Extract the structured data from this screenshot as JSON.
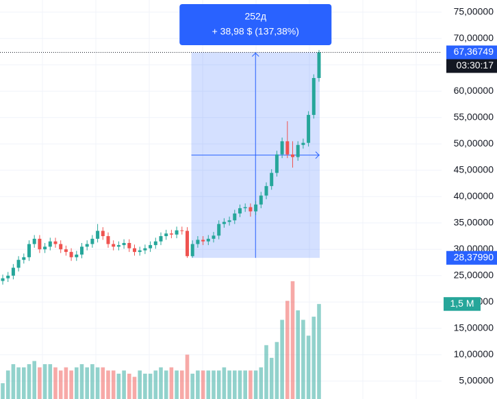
{
  "chart_data": {
    "type": "candlestick",
    "open": [
      24,
      24.5,
      25,
      26.5,
      28,
      28.5,
      31,
      32,
      30,
      30.5,
      31.5,
      31,
      30,
      29.5,
      28.5,
      29,
      30.5,
      31,
      32,
      33.5,
      32.5,
      31,
      30.5,
      30.8,
      31.2,
      30.2,
      29.5,
      29.8,
      30.2,
      30.8,
      31.5,
      32.5,
      33,
      32.8,
      33.6,
      33.5,
      28.7,
      31,
      31.8,
      31.5,
      32,
      32.6,
      34.8,
      35.2,
      35.5,
      36.8,
      37.8,
      38,
      37.2,
      38.5,
      40.2,
      42,
      44.5,
      48,
      50.5,
      48,
      47.5,
      49.8,
      50.2,
      55.5,
      62.5
    ],
    "high": [
      25.2,
      25.7,
      27.2,
      28.7,
      29.2,
      31.7,
      32.7,
      32.7,
      31.2,
      32.2,
      32.2,
      31.7,
      30.7,
      30.2,
      29.7,
      31.2,
      31.7,
      32.7,
      34.8,
      34.2,
      33.2,
      31.7,
      31.5,
      31.9,
      31.9,
      30.9,
      30.5,
      30.9,
      31.5,
      32.2,
      33.2,
      33.7,
      33.7,
      34.3,
      34.3,
      34.2,
      31.7,
      32.5,
      32.5,
      32.7,
      33.3,
      35.5,
      35.9,
      36.2,
      37.5,
      38.5,
      38.7,
      38.7,
      39.2,
      40.9,
      42.7,
      45.2,
      48.7,
      51.2,
      54.3,
      50.5,
      50.5,
      51,
      56.2,
      63.2,
      67.8
    ],
    "low": [
      23.3,
      23.8,
      24.3,
      25.8,
      27.3,
      27.8,
      30.3,
      29.3,
      29.3,
      29.8,
      30.3,
      29.3,
      28.8,
      27.8,
      27.8,
      28.3,
      29.8,
      30.3,
      31.3,
      31.8,
      30.3,
      29.8,
      29.8,
      30.1,
      29.5,
      28.8,
      28.8,
      29.1,
      29.5,
      30.1,
      30.8,
      31.8,
      32.1,
      32.1,
      32.8,
      28.3799,
      28.4,
      30.3,
      30.8,
      30.8,
      31.3,
      31.9,
      34.1,
      34.5,
      34.8,
      36.1,
      37.1,
      36.2,
      36.5,
      37.8,
      39.5,
      41.3,
      43.8,
      47.3,
      47.3,
      45.5,
      46.8,
      49.1,
      49.5,
      54.8,
      61.8
    ],
    "close": [
      24.5,
      25,
      26.5,
      28,
      28.5,
      31,
      32,
      30,
      30.5,
      31.5,
      31,
      30,
      29.5,
      28.5,
      29,
      30.5,
      31,
      32,
      33.5,
      32.5,
      31,
      30.5,
      30.8,
      31.2,
      30.2,
      29.5,
      29.8,
      30.2,
      30.8,
      31.5,
      32.5,
      33,
      32.8,
      33.6,
      33.5,
      28.7,
      31,
      31.8,
      31.5,
      32,
      32.6,
      34.8,
      35.2,
      35.5,
      36.8,
      37.8,
      38,
      37.2,
      38.5,
      40.2,
      42,
      44.5,
      48,
      50.5,
      48,
      47.5,
      49.8,
      50.2,
      55.5,
      62.5,
      67.36749
    ],
    "volume": [
      0.25,
      0.45,
      0.55,
      0.5,
      0.5,
      0.55,
      0.6,
      0.5,
      0.55,
      0.55,
      0.5,
      0.45,
      0.5,
      0.45,
      0.5,
      0.55,
      0.5,
      0.55,
      0.5,
      0.5,
      0.45,
      0.45,
      0.4,
      0.45,
      0.4,
      0.35,
      0.45,
      0.4,
      0.4,
      0.45,
      0.5,
      0.45,
      0.5,
      0.45,
      0.45,
      0.7,
      0.4,
      0.45,
      0.45,
      0.45,
      0.45,
      0.45,
      0.5,
      0.45,
      0.45,
      0.45,
      0.45,
      0.45,
      0.45,
      0.5,
      0.85,
      0.65,
      0.9,
      1.25,
      1.55,
      1.86,
      1.4,
      1.25,
      1.0,
      1.3,
      1.5
    ],
    "volume_ylim": [
      0,
      6.3
    ],
    "volume_last_label": "1,5 M",
    "up_color": "#26a69a",
    "down_color": "#ef5350",
    "ylim": [
      1.6,
      77.3
    ],
    "yticks": [
      {
        "value": 5,
        "label": "5,00000"
      },
      {
        "value": 10,
        "label": "10,00000"
      },
      {
        "value": 15,
        "label": "15,00000"
      },
      {
        "value": 20,
        "label": "20,00000"
      },
      {
        "value": 25,
        "label": "25,00000"
      },
      {
        "value": 30,
        "label": "30,00000"
      },
      {
        "value": 35,
        "label": "35,00000"
      },
      {
        "value": 40,
        "label": "40,00000"
      },
      {
        "value": 45,
        "label": "45,00000"
      },
      {
        "value": 50,
        "label": "50,00000"
      },
      {
        "value": 55,
        "label": "55,00000"
      },
      {
        "value": 60,
        "label": "60,00000"
      },
      {
        "value": 65,
        "label": "65,00000"
      },
      {
        "value": 70,
        "label": "70,00000"
      },
      {
        "value": 75,
        "label": "75,00000"
      }
    ],
    "grid": true,
    "last_price_label": "67,36749",
    "countdown": "03:30:17",
    "measure": {
      "duration": "252д",
      "change": "+ 38,98 $ (137,38%)",
      "low_label": "28,37990"
    }
  }
}
